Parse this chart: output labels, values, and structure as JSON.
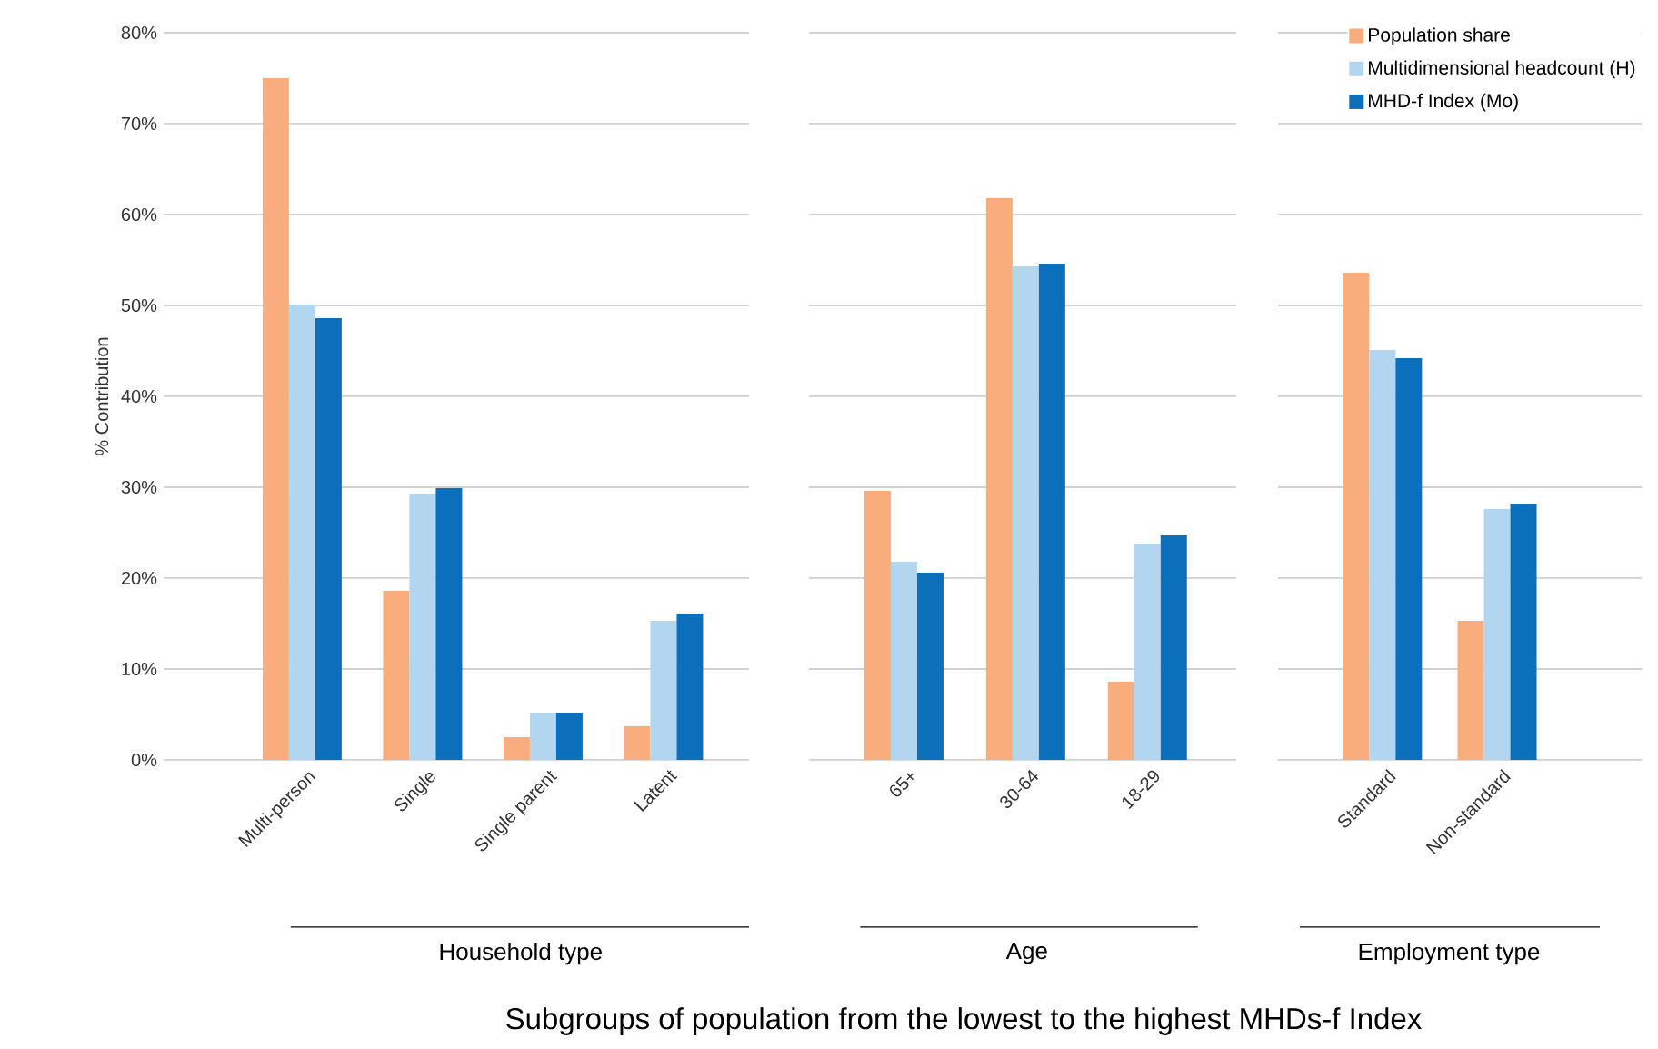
{
  "chart_data": [
    {
      "type": "bar",
      "xlabel": "Household type",
      "ylabel": "% Contribution",
      "categories": [
        "Multi-person",
        "Single",
        "Single parent",
        "Latent"
      ],
      "series": [
        {
          "color": "#f9ad7d",
          "values": [
            75.0,
            18.6,
            2.5,
            3.7
          ]
        },
        {
          "color": "#b3d6f0",
          "values": [
            50.1,
            29.3,
            5.2,
            15.3
          ]
        },
        {
          "color": "#0b6fbb",
          "values": [
            48.6,
            29.9,
            5.2,
            16.1
          ]
        }
      ],
      "ylim": [
        0,
        80
      ],
      "yticks": [
        {
          "value": 0,
          "label": "0%"
        },
        {
          "value": 10,
          "label": "10%"
        },
        {
          "value": 20,
          "label": "20%"
        },
        {
          "value": 30,
          "label": "30%"
        },
        {
          "value": 40,
          "label": "40%"
        },
        {
          "value": 50,
          "label": "50%"
        },
        {
          "value": 60,
          "label": "60%"
        },
        {
          "value": 70,
          "label": "70%"
        },
        {
          "value": 80,
          "label": "80%"
        }
      ],
      "grid": "y",
      "annotations": [
        "Subgroups of population from the lowest to the highest MHDs-f Index"
      ]
    },
    {
      "type": "bar",
      "xlabel": "Age",
      "categories": [
        "65+",
        "30-64",
        "18-29"
      ],
      "series": [
        {
          "color": "#f9ad7d",
          "values": [
            29.6,
            61.8,
            8.6
          ]
        },
        {
          "color": "#b3d6f0",
          "values": [
            21.8,
            54.3,
            23.8
          ]
        },
        {
          "color": "#0b6fbb",
          "values": [
            20.6,
            54.6,
            24.7
          ]
        }
      ],
      "ylim": [
        0,
        80
      ],
      "yticks": [
        {
          "value": 0,
          "label": null
        },
        {
          "value": 10,
          "label": null
        },
        {
          "value": 20,
          "label": null
        },
        {
          "value": 30,
          "label": null
        },
        {
          "value": 40,
          "label": null
        },
        {
          "value": 50,
          "label": null
        },
        {
          "value": 60,
          "label": null
        },
        {
          "value": 70,
          "label": null
        },
        {
          "value": 80,
          "label": null
        }
      ],
      "grid": "y",
      "tick_labels": "x"
    },
    {
      "type": "bar",
      "xlabel": "Employment type",
      "categories": [
        "Standard",
        "Non-standard"
      ],
      "series": [
        {
          "name": "Population share",
          "color": "#f9ad7d",
          "values": [
            53.6,
            15.3
          ]
        },
        {
          "name": "Multidimensional headcount (H)",
          "color": "#b3d6f0",
          "values": [
            45.1,
            27.6
          ]
        },
        {
          "name": "MHD-f Index (Mo)",
          "color": "#0b6fbb",
          "values": [
            44.2,
            28.2
          ]
        }
      ],
      "ylim": [
        0,
        80
      ],
      "yticks": [
        {
          "value": 0,
          "label": null
        },
        {
          "value": 10,
          "label": null
        },
        {
          "value": 20,
          "label": null
        },
        {
          "value": 30,
          "label": null
        },
        {
          "value": 40,
          "label": null
        },
        {
          "value": 50,
          "label": null
        },
        {
          "value": 60,
          "label": null
        },
        {
          "value": 70,
          "label": null
        },
        {
          "value": 80,
          "label": null
        }
      ],
      "grid": "y",
      "tick_labels": "x",
      "legend": "top right"
    }
  ]
}
